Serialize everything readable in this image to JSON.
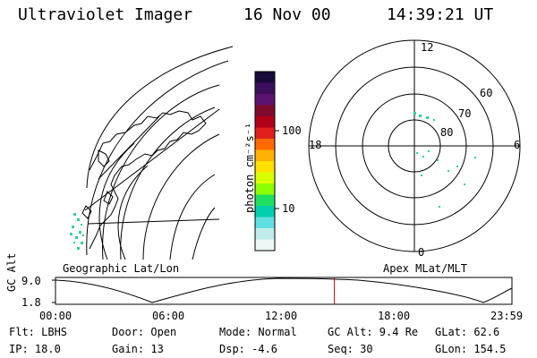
{
  "header": {
    "instrument": "Ultraviolet Imager",
    "date": "16 Nov 00",
    "time": "14:39:21 UT"
  },
  "geo_panel": {
    "label": "Geographic Lat/Lon"
  },
  "colorbar": {
    "label": "photon cm⁻²s⁻¹",
    "ticks": [
      "100",
      "10"
    ],
    "colors": [
      "#1a0a3a",
      "#3b0f5c",
      "#5a1470",
      "#800a2e",
      "#b0001a",
      "#e0201a",
      "#ff6a00",
      "#ffb000",
      "#ffe000",
      "#d8ff00",
      "#8cff00",
      "#20e060",
      "#00d0b0",
      "#60e0e0",
      "#c0ecec",
      "#eef6f6"
    ]
  },
  "polar_panel": {
    "label": "Apex MLat/MLT",
    "mlt_labels": [
      "12",
      "6",
      "0",
      "18"
    ],
    "lat_labels": [
      "60",
      "70",
      "80"
    ]
  },
  "timeline": {
    "axis_label": "GC Alt",
    "y_ticks": [
      "9.0",
      "1.8"
    ],
    "x_ticks": [
      "00:00",
      "06:00",
      "12:00",
      "18:00",
      "23:59"
    ],
    "current_time_fraction": 0.611
  },
  "status": {
    "flt": "Flt: LBHS",
    "ip": "IP: 18.0",
    "door": "Door: Open",
    "gain": "Gain: 13",
    "mode": "Mode: Normal",
    "dsp": "Dsp:   -4.6",
    "gc_alt": "GC Alt: 9.4 Re",
    "seq": "Seq: 30",
    "glat": "GLat:  62.6",
    "glon": "GLon: 154.5"
  }
}
